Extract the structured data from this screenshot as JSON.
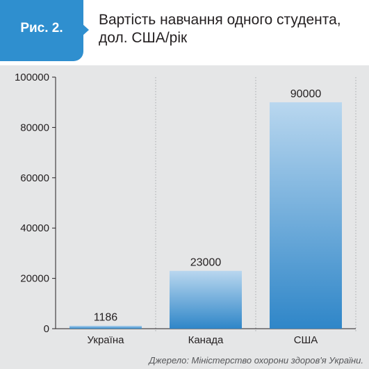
{
  "figure": {
    "label": "Рис. 2.",
    "title": "Вартість навчання одного студента, дол. США/рік",
    "source": "Джерело: Міністерство охорони здоров'я України."
  },
  "colors": {
    "tag": "#2f8fcf",
    "bar_top": "#b9d7ef",
    "bar_bottom": "#2f86c8",
    "frame": "#e5e6e7"
  },
  "chart_data": {
    "type": "bar",
    "title": "Вартість навчання одного студента, дол. США/рік",
    "categories": [
      "Україна",
      "Канада",
      "США"
    ],
    "values": [
      1186,
      23000,
      90000
    ],
    "data_labels": [
      "1186",
      "23000",
      "90000"
    ],
    "ylim": [
      0,
      100000
    ],
    "yticks": [
      0,
      20000,
      40000,
      60000,
      80000,
      100000
    ],
    "ytick_labels": [
      "0",
      "20000",
      "40000",
      "60000",
      "80000",
      "100000"
    ],
    "xlabel": "",
    "ylabel": "",
    "grid": "vertical dotted separators",
    "legend": "none"
  }
}
